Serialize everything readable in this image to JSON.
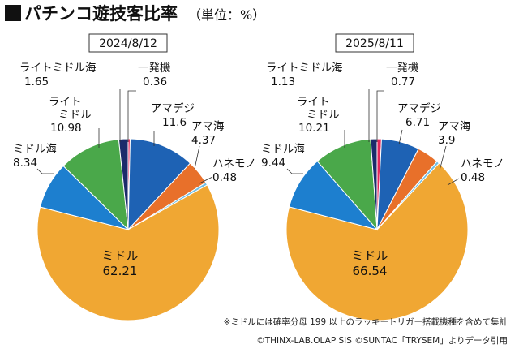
{
  "title": "パチンコ遊技客比率",
  "unit": "（単位：%）",
  "chart_data": [
    {
      "type": "pie",
      "date": "2024/8/12",
      "slices": [
        {
          "label": "一発機",
          "value": 0.36,
          "color": "#e2265a"
        },
        {
          "label": "アマデジ",
          "value": 11.6,
          "color": "#1e62b4"
        },
        {
          "label": "アマ海",
          "value": 4.37,
          "color": "#e8702a"
        },
        {
          "label": "ハネモノ",
          "value": 0.48,
          "color": "#6fbfe6"
        },
        {
          "label": "ミドル",
          "value": 62.21,
          "color": "#f0a733"
        },
        {
          "label": "ミドル海",
          "value": 8.34,
          "color": "#1d7fcf"
        },
        {
          "label": "ライトミドル",
          "value": 10.98,
          "color": "#4aa84a"
        },
        {
          "label": "ライトミドル海",
          "value": 1.65,
          "color": "#1b2b6b"
        }
      ]
    },
    {
      "type": "pie",
      "date": "2025/8/11",
      "slices": [
        {
          "label": "一発機",
          "value": 0.77,
          "color": "#e2265a"
        },
        {
          "label": "アマデジ",
          "value": 6.71,
          "color": "#1e62b4"
        },
        {
          "label": "アマ海",
          "value": 3.9,
          "color": "#e8702a"
        },
        {
          "label": "ハネモノ",
          "value": 0.48,
          "color": "#6fbfe6"
        },
        {
          "label": "ミドル",
          "value": 66.54,
          "color": "#f0a733"
        },
        {
          "label": "ミドル海",
          "value": 9.44,
          "color": "#1d7fcf"
        },
        {
          "label": "ライトミドル",
          "value": 10.21,
          "color": "#4aa84a"
        },
        {
          "label": "ライトミドル海",
          "value": 1.13,
          "color": "#1b2b6b"
        }
      ]
    }
  ],
  "footnotes": {
    "note1": "※ミドルには確率分母 199 以上のラッキートリガー搭載機種を含めて集計",
    "note2": "©THINX-LAB.OLAP SIS ©SUNTAC「TRYSEM」よりデータ引用"
  },
  "labels": {
    "left": {
      "ikkatsu": {
        "name": "一発機",
        "value": "0.36"
      },
      "amadeji": {
        "name": "アマデジ",
        "value": "11.6"
      },
      "amaumi": {
        "name": "アマ海",
        "value": "4.37"
      },
      "hanemono": {
        "name": "ハネモノ",
        "value": "0.48"
      },
      "middle": {
        "name": "ミドル",
        "value": "62.21"
      },
      "middleumi": {
        "name": "ミドル海",
        "value": "8.34"
      },
      "light1": "ライト",
      "light2": "ミドル",
      "light_value": "10.98",
      "lightumi": {
        "name": "ライトミドル海",
        "value": "1.65"
      }
    },
    "right": {
      "ikkatsu": {
        "name": "一発機",
        "value": "0.77"
      },
      "amadeji": {
        "name": "アマデジ",
        "value": "6.71"
      },
      "amaumi": {
        "name": "アマ海",
        "value": "3.9"
      },
      "hanemono": {
        "name": "ハネモノ",
        "value": "0.48"
      },
      "middle": {
        "name": "ミドル",
        "value": "66.54"
      },
      "middleumi": {
        "name": "ミドル海",
        "value": "9.44"
      },
      "light1": "ライト",
      "light2": "ミドル",
      "light_value": "10.21",
      "lightumi": {
        "name": "ライトミドル海",
        "value": "1.13"
      }
    }
  }
}
